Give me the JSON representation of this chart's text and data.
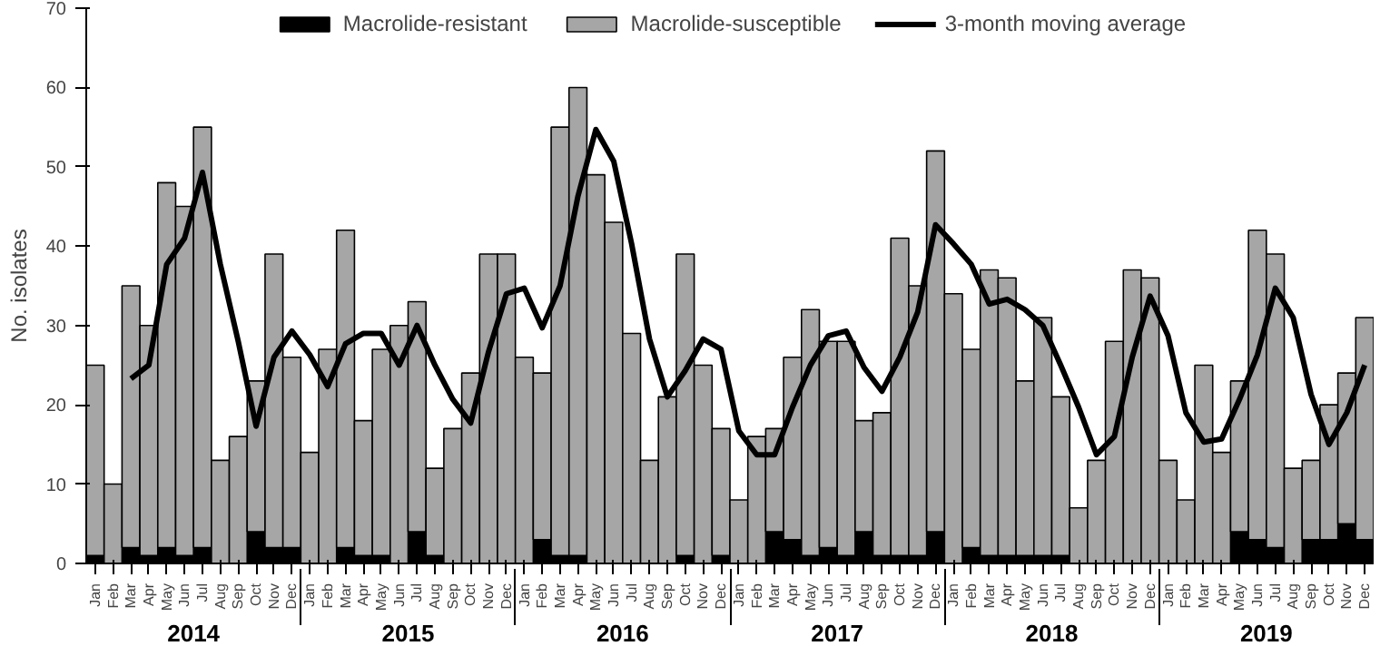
{
  "chart_data": {
    "type": "bar",
    "stacked": true,
    "ylabel": "No. isolates",
    "ylim": [
      0,
      70
    ],
    "yticks": [
      0,
      10,
      20,
      30,
      40,
      50,
      60,
      70
    ],
    "grid": false,
    "legend": "top",
    "categories": [
      "Jan",
      "Feb",
      "Mar",
      "Apr",
      "May",
      "Jun",
      "Jul",
      "Aug",
      "Sep",
      "Oct",
      "Nov",
      "Dec",
      "Jan",
      "Feb",
      "Mar",
      "Apr",
      "May",
      "Jun",
      "Jul",
      "Aug",
      "Sep",
      "Oct",
      "Nov",
      "Dec",
      "Jan",
      "Feb",
      "Mar",
      "Apr",
      "May",
      "Jun",
      "Jul",
      "Aug",
      "Sep",
      "Oct",
      "Nov",
      "Dec",
      "Jan",
      "Feb",
      "Mar",
      "Apr",
      "May",
      "Jun",
      "Jul",
      "Aug",
      "Sep",
      "Oct",
      "Nov",
      "Dec",
      "Jan",
      "Feb",
      "Mar",
      "Apr",
      "May",
      "Jun",
      "Jul",
      "Aug",
      "Sep",
      "Oct",
      "Nov",
      "Dec",
      "Jan",
      "Feb",
      "Mar",
      "Apr",
      "May",
      "Jun",
      "Jul",
      "Aug",
      "Sep",
      "Oct",
      "Nov",
      "Dec"
    ],
    "annotations": [
      "2014",
      "2015",
      "2016",
      "2017",
      "2018",
      "2019"
    ],
    "series": [
      {
        "name": "Macrolide-resistant",
        "color": "#000000",
        "values": [
          1,
          0,
          2,
          1,
          2,
          1,
          2,
          0,
          0,
          4,
          2,
          2,
          0,
          0,
          2,
          1,
          1,
          0,
          4,
          1,
          0,
          0,
          0,
          0,
          0,
          3,
          1,
          1,
          0,
          0,
          0,
          0,
          0,
          1,
          0,
          1,
          0,
          0,
          4,
          3,
          1,
          2,
          1,
          4,
          1,
          1,
          1,
          4,
          0,
          2,
          1,
          1,
          1,
          1,
          1,
          0,
          0,
          0,
          0,
          0,
          0,
          0,
          0,
          0,
          4,
          3,
          2,
          0,
          3,
          3,
          5,
          3
        ]
      },
      {
        "name": "Macrolide-susceptible",
        "color": "#a6a6a6",
        "values": [
          24,
          10,
          33,
          29,
          46,
          44,
          53,
          13,
          16,
          19,
          37,
          24,
          14,
          27,
          40,
          17,
          26,
          30,
          29,
          11,
          17,
          24,
          39,
          39,
          26,
          21,
          54,
          59,
          49,
          43,
          29,
          13,
          21,
          38,
          25,
          16,
          8,
          16,
          13,
          23,
          31,
          26,
          27,
          14,
          18,
          40,
          34,
          48,
          34,
          25,
          36,
          35,
          22,
          30,
          20,
          7,
          13,
          28,
          37,
          36,
          13,
          8,
          25,
          14,
          19,
          39,
          37,
          12,
          10,
          17,
          19,
          28
        ]
      },
      {
        "name": "3-month moving average",
        "type": "line",
        "color": "#000000",
        "values": [
          null,
          null,
          23.3,
          25.0,
          37.7,
          41.0,
          49.3,
          37.7,
          28.0,
          17.3,
          26.0,
          29.3,
          26.3,
          22.3,
          27.7,
          29.0,
          29.0,
          25.0,
          30.0,
          25.0,
          20.7,
          17.7,
          26.7,
          34.0,
          34.7,
          29.7,
          35.0,
          46.3,
          54.7,
          50.7,
          40.3,
          28.3,
          21.0,
          24.3,
          28.3,
          27.0,
          16.7,
          13.7,
          13.7,
          19.7,
          25.0,
          28.7,
          29.3,
          24.7,
          21.7,
          26.0,
          31.7,
          42.7,
          40.3,
          37.7,
          32.7,
          33.3,
          32.0,
          30.0,
          25.0,
          19.7,
          13.7,
          16.0,
          26.0,
          33.7,
          28.7,
          19.0,
          15.3,
          15.7,
          20.7,
          26.3,
          34.7,
          31.0,
          21.3,
          15.0,
          19.0,
          25.0
        ]
      }
    ]
  }
}
